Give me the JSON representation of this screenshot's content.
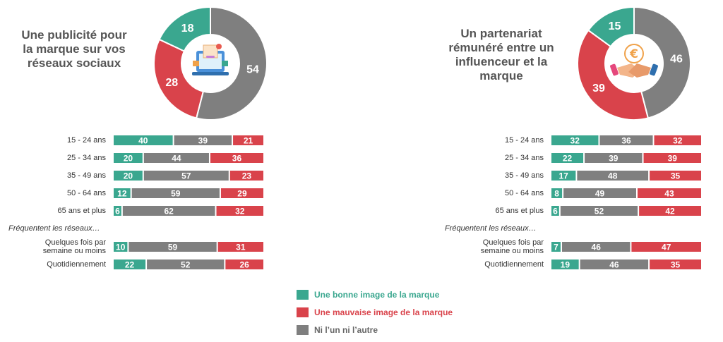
{
  "colors": {
    "good": "#3aa78f",
    "bad": "#d9434b",
    "neutral": "#7f7f7f"
  },
  "chart_data": [
    {
      "type": "donut+stacked-bar",
      "title": "Une publicité pour la marque sur vos réseaux sociaux",
      "donut": [
        {
          "key": "good",
          "value": 18
        },
        {
          "key": "bad",
          "value": 28
        },
        {
          "key": "neutral",
          "value": 54
        }
      ],
      "icon": "laptop-ad-icon",
      "categories": [
        "15 - 24 ans",
        "25 - 34 ans",
        "35 - 49 ans",
        "50 - 64 ans",
        "65 ans et plus",
        "Quelques fois par semaine ou moins",
        "Quotidiennement"
      ],
      "group_label": "Fréquentent les réseaux…",
      "series": [
        {
          "name": "Une bonne image de la marque",
          "values": [
            40,
            20,
            20,
            12,
            6,
            10,
            22
          ]
        },
        {
          "name": "Ni l'un ni l'autre",
          "values": [
            39,
            44,
            57,
            59,
            62,
            59,
            52
          ]
        },
        {
          "name": "Une mauvaise image de la marque",
          "values": [
            21,
            36,
            23,
            29,
            32,
            31,
            26
          ]
        }
      ]
    },
    {
      "type": "donut+stacked-bar",
      "title": "Un partenariat rémunéré entre un influenceur et la marque",
      "donut": [
        {
          "key": "good",
          "value": 15
        },
        {
          "key": "bad",
          "value": 39
        },
        {
          "key": "neutral",
          "value": 46
        }
      ],
      "icon": "handshake-euro-icon",
      "categories": [
        "15 - 24 ans",
        "25 - 34 ans",
        "35 - 49 ans",
        "50 - 64 ans",
        "65 ans et plus",
        "Quelques fois par semaine ou moins",
        "Quotidiennement"
      ],
      "group_label": "Fréquentent les réseaux…",
      "series": [
        {
          "name": "Une bonne image de la marque",
          "values": [
            32,
            22,
            17,
            8,
            6,
            7,
            19
          ]
        },
        {
          "name": "Ni l'un ni l'autre",
          "values": [
            36,
            39,
            48,
            49,
            52,
            46,
            46
          ]
        },
        {
          "name": "Une mauvaise image de la marque",
          "values": [
            32,
            39,
            35,
            43,
            42,
            47,
            35
          ]
        }
      ]
    }
  ],
  "legend": [
    {
      "key": "good",
      "label": "Une bonne image de la marque"
    },
    {
      "key": "bad",
      "label": "Une mauvaise image de la marque"
    },
    {
      "key": "neutral",
      "label": "Ni l’un ni l’autre"
    }
  ]
}
